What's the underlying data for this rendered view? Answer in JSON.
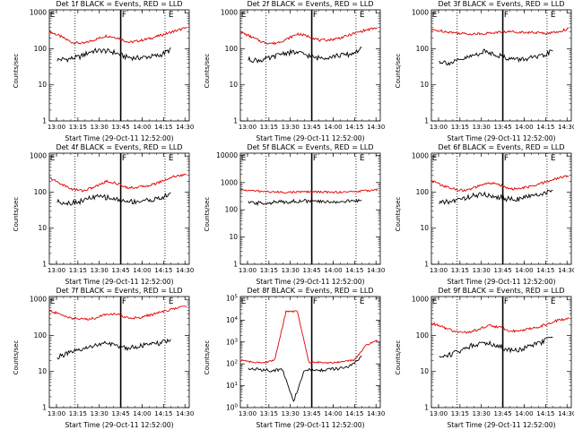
{
  "chart_data": [
    {
      "type": "line",
      "title": "Det 1f BLACK = Events, RED = LLD",
      "xlabel": "Start Time (29-Oct-11 12:52:00)",
      "ylabel": "Counts/sec",
      "xticks": [
        "13:00",
        "13:15",
        "13:30",
        "13:45",
        "14:00",
        "14:15",
        "14:30"
      ],
      "yticks": [
        "1",
        "10",
        "100",
        "1000"
      ],
      "ylim": [
        1,
        1200
      ],
      "yscale": "log",
      "markers": [
        "E",
        "F",
        "E"
      ],
      "series": [
        {
          "name": "RED",
          "color": "#e00000",
          "values": [
            300,
            220,
            150,
            140,
            180,
            230,
            200,
            150,
            170,
            200,
            250,
            310,
            380
          ]
        },
        {
          "name": "BLACK",
          "color": "#000000",
          "values": [
            50,
            52,
            60,
            85,
            90,
            80,
            60,
            55,
            60,
            65,
            95
          ]
        }
      ]
    },
    {
      "type": "line",
      "title": "Det 2f BLACK = Events, RED = LLD",
      "xlabel": "Start Time (29-Oct-11 12:52:00)",
      "ylabel": "Counts/sec",
      "xticks": [
        "13:00",
        "13:15",
        "13:30",
        "13:45",
        "14:00",
        "14:15",
        "14:30"
      ],
      "yticks": [
        "1",
        "10",
        "100",
        "1000"
      ],
      "ylim": [
        1,
        1200
      ],
      "yscale": "log",
      "markers": [
        "E",
        "F",
        "E"
      ],
      "series": [
        {
          "name": "RED",
          "color": "#e00000",
          "values": [
            290,
            210,
            150,
            140,
            180,
            260,
            220,
            170,
            180,
            210,
            270,
            330,
            380
          ]
        },
        {
          "name": "BLACK",
          "color": "#000000",
          "values": [
            50,
            48,
            55,
            75,
            80,
            70,
            55,
            60,
            65,
            70,
            100
          ]
        }
      ]
    },
    {
      "type": "line",
      "title": "Det 3f BLACK = Events, RED = LLD",
      "xlabel": "Start Time (29-Oct-11 12:52:00)",
      "ylabel": "Counts/sec",
      "xticks": [
        "13:00",
        "13:15",
        "13:30",
        "13:45",
        "14:00",
        "14:15",
        "14:30"
      ],
      "yticks": [
        "1",
        "10",
        "100",
        "1000"
      ],
      "ylim": [
        1,
        1200
      ],
      "yscale": "log",
      "markers": [
        "E",
        "F",
        "E"
      ],
      "series": [
        {
          "name": "RED",
          "color": "#e00000",
          "values": [
            330,
            310,
            280,
            260,
            260,
            270,
            290,
            300,
            290,
            280,
            270,
            290,
            360
          ]
        },
        {
          "name": "BLACK",
          "color": "#000000",
          "values": [
            45,
            40,
            50,
            65,
            85,
            70,
            55,
            50,
            55,
            60,
            90
          ]
        }
      ]
    },
    {
      "type": "line",
      "title": "Det 4f BLACK = Events, RED = LLD",
      "xlabel": "Start Time (29-Oct-11 12:52:00)",
      "ylabel": "Counts/sec",
      "xticks": [
        "13:00",
        "13:15",
        "13:30",
        "13:45",
        "14:00",
        "14:15",
        "14:30"
      ],
      "yticks": [
        "1",
        "10",
        "100",
        "1000"
      ],
      "ylim": [
        1,
        1200
      ],
      "yscale": "log",
      "markers": [
        "E",
        "F",
        "E"
      ],
      "series": [
        {
          "name": "RED",
          "color": "#e00000",
          "values": [
            250,
            170,
            120,
            110,
            140,
            200,
            170,
            130,
            140,
            160,
            210,
            280,
            300
          ]
        },
        {
          "name": "BLACK",
          "color": "#000000",
          "values": [
            55,
            50,
            55,
            70,
            75,
            65,
            55,
            55,
            60,
            65,
            90
          ]
        }
      ]
    },
    {
      "type": "line",
      "title": "Det 5f BLACK = Events, RED = LLD",
      "xlabel": "Start Time (29-Oct-11 12:52:00)",
      "ylabel": "Counts/sec",
      "xticks": [
        "13:00",
        "13:15",
        "13:30",
        "13:45",
        "14:00",
        "14:15",
        "14:30"
      ],
      "yticks": [
        "1",
        "10",
        "100",
        "1000",
        "10000"
      ],
      "ylim": [
        1,
        12000
      ],
      "yscale": "log",
      "markers": [
        "E",
        "F",
        "E"
      ],
      "series": [
        {
          "name": "RED",
          "color": "#e00000",
          "values": [
            550,
            500,
            470,
            450,
            440,
            450,
            460,
            450,
            440,
            450,
            470,
            500,
            560
          ]
        },
        {
          "name": "BLACK",
          "color": "#000000",
          "values": [
            180,
            175,
            185,
            195,
            205,
            210,
            200,
            195,
            200,
            205,
            220
          ]
        }
      ]
    },
    {
      "type": "line",
      "title": "Det 6f BLACK = Events, RED = LLD",
      "xlabel": "Start Time (29-Oct-11 12:52:00)",
      "ylabel": "Counts/sec",
      "xticks": [
        "13:00",
        "13:15",
        "13:30",
        "13:45",
        "14:00",
        "14:15",
        "14:30"
      ],
      "yticks": [
        "1",
        "10",
        "100",
        "1000"
      ],
      "ylim": [
        1,
        1200
      ],
      "yscale": "log",
      "markers": [
        "E",
        "F",
        "E"
      ],
      "series": [
        {
          "name": "RED",
          "color": "#e00000",
          "values": [
            210,
            150,
            120,
            110,
            140,
            180,
            160,
            120,
            130,
            150,
            190,
            240,
            280
          ]
        },
        {
          "name": "BLACK",
          "color": "#000000",
          "values": [
            50,
            55,
            65,
            80,
            85,
            75,
            65,
            65,
            75,
            90,
            110
          ]
        }
      ]
    },
    {
      "type": "line",
      "title": "Det 7f BLACK = Events, RED = LLD",
      "xlabel": "Start Time (29-Oct-11 12:52:00)",
      "ylabel": "Counts/sec",
      "xticks": [
        "13:00",
        "13:15",
        "13:30",
        "13:45",
        "14:00",
        "14:15",
        "14:30"
      ],
      "yticks": [
        "1",
        "10",
        "100",
        "1000"
      ],
      "ylim": [
        1,
        1200
      ],
      "yscale": "log",
      "markers": [
        "E",
        "F",
        "E"
      ],
      "series": [
        {
          "name": "RED",
          "color": "#e00000",
          "values": [
            480,
            380,
            300,
            280,
            300,
            400,
            380,
            300,
            320,
            380,
            460,
            560,
            650
          ]
        },
        {
          "name": "BLACK",
          "color": "#000000",
          "values": [
            25,
            32,
            38,
            50,
            60,
            55,
            45,
            50,
            55,
            60,
            75
          ]
        }
      ]
    },
    {
      "type": "line",
      "title": "Det 8f BLACK = Events, RED = LLD",
      "xlabel": "Start Time (29-Oct-11 12:52:00)",
      "ylabel": "Counts/sec",
      "xticks": [
        "13:00",
        "13:15",
        "13:30",
        "13:45",
        "14:00",
        "14:15",
        "14:30"
      ],
      "yticks": [
        "10^0",
        "10^1",
        "10^2",
        "10^3",
        "10^4",
        "10^5"
      ],
      "ylim": [
        1,
        120000
      ],
      "yscale": "log",
      "markers": [
        "E",
        "F",
        "E"
      ],
      "series": [
        {
          "name": "RED",
          "color": "#e00000",
          "values": [
            150,
            120,
            110,
            150,
            25000,
            25000,
            120,
            120,
            110,
            130,
            150,
            700,
            1200
          ]
        },
        {
          "name": "BLACK",
          "color": "#000000",
          "values": [
            60,
            55,
            50,
            55,
            2,
            55,
            50,
            55,
            60,
            80,
            200
          ]
        }
      ]
    },
    {
      "type": "line",
      "title": "Det 9f BLACK = Events, RED = LLD",
      "xlabel": "Start Time (29-Oct-11 12:52:00)",
      "ylabel": "Counts/sec",
      "xticks": [
        "13:00",
        "13:15",
        "13:30",
        "13:45",
        "14:00",
        "14:15",
        "14:30"
      ],
      "yticks": [
        "1",
        "10",
        "100",
        "1000"
      ],
      "ylim": [
        1,
        1200
      ],
      "yscale": "log",
      "markers": [
        "E",
        "F",
        "E"
      ],
      "series": [
        {
          "name": "RED",
          "color": "#e00000",
          "values": [
            220,
            170,
            130,
            120,
            140,
            190,
            170,
            130,
            140,
            160,
            200,
            260,
            300
          ]
        },
        {
          "name": "BLACK",
          "color": "#000000",
          "values": [
            25,
            30,
            40,
            55,
            65,
            55,
            40,
            40,
            50,
            65,
            95
          ]
        }
      ]
    }
  ]
}
